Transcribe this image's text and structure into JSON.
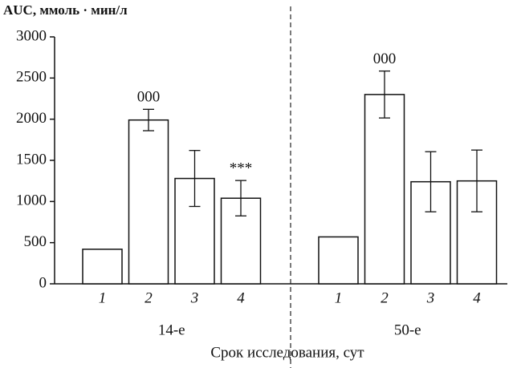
{
  "chart_data": {
    "type": "bar",
    "y_axis_label": "AUC, ммоль · мин/л",
    "x_axis_label": "Срок исследования, сут",
    "ylim": [
      0,
      3000
    ],
    "yticks": [
      0,
      500,
      1000,
      1500,
      2000,
      2500,
      3000
    ],
    "color": "#ffffff",
    "groups": [
      {
        "name": "14-е",
        "categories": [
          "1",
          "2",
          "3",
          "4"
        ],
        "values": [
          420,
          1990,
          1280,
          1040
        ],
        "errors": [
          null,
          130,
          340,
          215
        ],
        "annotations": [
          null,
          "000",
          null,
          "***"
        ]
      },
      {
        "name": "50-е",
        "categories": [
          "1",
          "2",
          "3",
          "4"
        ],
        "values": [
          570,
          2300,
          1240,
          1250
        ],
        "errors": [
          null,
          285,
          365,
          375
        ],
        "annotations": [
          null,
          "000",
          null,
          null
        ]
      }
    ]
  }
}
